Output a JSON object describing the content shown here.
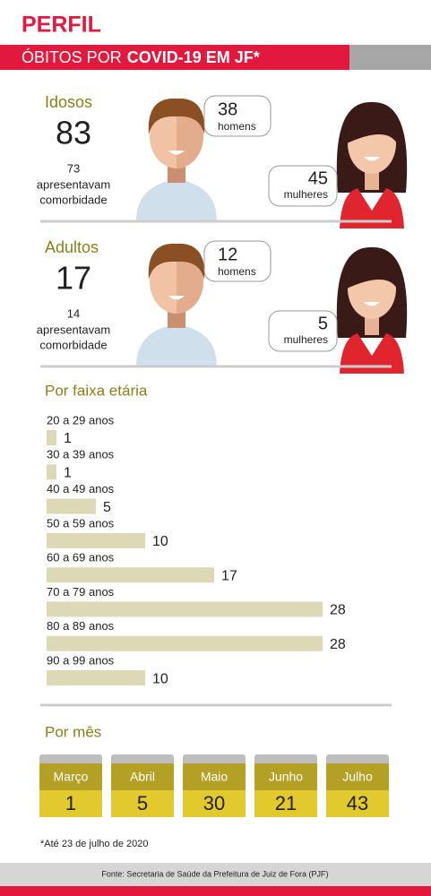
{
  "header": {
    "title": "PERFIL",
    "subtitle_prefix": "ÓBITOS POR",
    "subtitle_bold": "COVID-19 EM JF*"
  },
  "groups": [
    {
      "label": "Idosos",
      "total": 83,
      "comorbidity_count": 73,
      "comorbidity_text": [
        "apresentavam",
        "comorbidade"
      ],
      "men": 38,
      "men_label": "homens",
      "women": 45,
      "women_label": "mulheres"
    },
    {
      "label": "Adultos",
      "total": 17,
      "comorbidity_count": 14,
      "comorbidity_text": [
        "apresentavam",
        "comorbidade"
      ],
      "men": 12,
      "men_label": "homens",
      "women": 5,
      "women_label": "mulheres"
    }
  ],
  "chart_data": {
    "type": "bar",
    "orientation": "horizontal",
    "title": "Por faixa etária",
    "categories": [
      "20 a 29 anos",
      "30 a 39 anos",
      "40 a 49 anos",
      "50 a 59 anos",
      "60 a 69 anos",
      "70 a 79 anos",
      "80 a 89 anos",
      "90 a 99 anos"
    ],
    "values": [
      1,
      1,
      5,
      10,
      17,
      28,
      28,
      10
    ],
    "color": "#ddd8b6"
  },
  "months": {
    "title": "Por mês",
    "items": [
      {
        "month": "Março",
        "value": 1
      },
      {
        "month": "Abril",
        "value": 5
      },
      {
        "month": "Maio",
        "value": 30
      },
      {
        "month": "Junho",
        "value": 21
      },
      {
        "month": "Julho",
        "value": 43
      }
    ]
  },
  "footnote": "*Até 23 de julho de 2020",
  "source": "Fonte: Secretaria de Saúde da Prefeitura de Juiz de Fora (PJF)"
}
